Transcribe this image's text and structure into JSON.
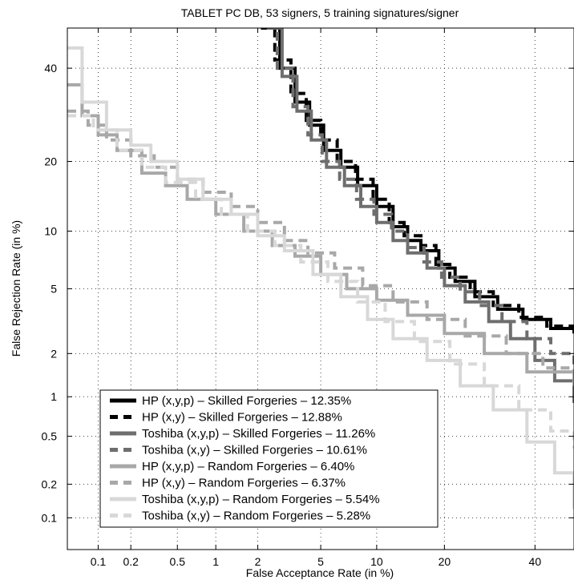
{
  "chart_data": {
    "type": "line",
    "title": "TABLET PC DB, 53 signers, 5 training signatures/signer",
    "xlabel": "False Acceptance Rate (in %)",
    "ylabel": "False Rejection Rate (in %)",
    "x_scale": "probit",
    "y_scale": "probit",
    "xlim": [
      0.05,
      50
    ],
    "ylim": [
      0.05,
      50
    ],
    "xticks": [
      "0.1",
      "0.2",
      "0.5",
      "1",
      "2",
      "5",
      "10",
      "20",
      "40"
    ],
    "yticks": [
      "0.1",
      "0.2",
      "0.5",
      "1",
      "2",
      "5",
      "10",
      "20",
      "40"
    ],
    "grid": true,
    "legend_position": "bottom-left",
    "series": [
      {
        "name": "HP (x,y,p) – Skilled Forgeries – 12.35%",
        "color": "#000000",
        "dash": "solid",
        "points": [
          [
            2.4,
            50
          ],
          [
            2.8,
            40
          ],
          [
            3.5,
            32
          ],
          [
            4.3,
            27
          ],
          [
            5.2,
            22
          ],
          [
            6.5,
            19
          ],
          [
            8,
            16
          ],
          [
            10,
            13
          ],
          [
            12,
            10.5
          ],
          [
            14,
            9
          ],
          [
            16,
            8
          ],
          [
            19,
            6.5
          ],
          [
            22,
            5.5
          ],
          [
            26,
            4.5
          ],
          [
            31,
            3.8
          ],
          [
            37,
            3.3
          ],
          [
            44,
            2.9
          ],
          [
            50,
            2.7
          ]
        ]
      },
      {
        "name": "HP (x,y) – Skilled Forgeries – 12.88%",
        "color": "#000000",
        "dash": "dashed",
        "points": [
          [
            2.1,
            50
          ],
          [
            2.6,
            42
          ],
          [
            3.3,
            34
          ],
          [
            4.1,
            28
          ],
          [
            5,
            24
          ],
          [
            6.2,
            20
          ],
          [
            7.8,
            17
          ],
          [
            9.6,
            14
          ],
          [
            11.5,
            11
          ],
          [
            13.5,
            9.5
          ],
          [
            16,
            8.5
          ],
          [
            18.5,
            6.8
          ],
          [
            21,
            5.8
          ],
          [
            25,
            4.8
          ],
          [
            30,
            4
          ],
          [
            36,
            3.4
          ],
          [
            43,
            3
          ],
          [
            50,
            2.8
          ]
        ]
      },
      {
        "name": "Toshiba (x,y,p) – Skilled Forgeries – 11.26%",
        "color": "#6e6e6e",
        "dash": "solid",
        "points": [
          [
            2.5,
            50
          ],
          [
            2.9,
            38
          ],
          [
            3.6,
            30
          ],
          [
            4.4,
            24
          ],
          [
            5.4,
            19
          ],
          [
            6.8,
            16
          ],
          [
            8.3,
            13
          ],
          [
            10,
            11
          ],
          [
            12,
            9
          ],
          [
            14,
            7.8
          ],
          [
            17,
            6.5
          ],
          [
            20,
            5.2
          ],
          [
            24,
            4.2
          ],
          [
            29,
            3.2
          ],
          [
            34,
            2.5
          ],
          [
            40,
            1.8
          ],
          [
            45,
            1.3
          ],
          [
            50,
            0.9
          ]
        ]
      },
      {
        "name": "Toshiba (x,y) – Skilled Forgeries – 10.61%",
        "color": "#6e6e6e",
        "dash": "dashed",
        "points": [
          [
            2.3,
            50
          ],
          [
            2.7,
            40
          ],
          [
            3.4,
            31
          ],
          [
            4.2,
            25
          ],
          [
            5.1,
            20
          ],
          [
            6.4,
            17
          ],
          [
            7.9,
            14
          ],
          [
            9.7,
            12
          ],
          [
            11.8,
            10
          ],
          [
            14,
            8.3
          ],
          [
            16.5,
            7
          ],
          [
            19.5,
            5.8
          ],
          [
            23,
            4.8
          ],
          [
            27,
            4
          ],
          [
            32,
            3.2
          ],
          [
            38,
            2.5
          ],
          [
            44,
            2
          ],
          [
            50,
            1.5
          ]
        ]
      },
      {
        "name": "HP (x,y,p) – Random Forgeries – 6.40%",
        "color": "#a8a8a8",
        "dash": "solid",
        "points": [
          [
            0.05,
            36
          ],
          [
            0.07,
            29
          ],
          [
            0.1,
            25
          ],
          [
            0.15,
            22
          ],
          [
            0.25,
            18
          ],
          [
            0.4,
            16
          ],
          [
            0.6,
            14
          ],
          [
            1,
            12
          ],
          [
            1.6,
            10
          ],
          [
            2.5,
            8.5
          ],
          [
            3.5,
            7.5
          ],
          [
            5,
            6
          ],
          [
            7,
            5
          ],
          [
            10,
            4.3
          ],
          [
            14,
            3.5
          ],
          [
            20,
            2.7
          ],
          [
            28,
            2
          ],
          [
            38,
            1.5
          ],
          [
            50,
            1.2
          ]
        ]
      },
      {
        "name": "HP (x,y) – Random Forgeries – 6.37%",
        "color": "#a8a8a8",
        "dash": "dashed",
        "points": [
          [
            0.05,
            30
          ],
          [
            0.08,
            27
          ],
          [
            0.12,
            24
          ],
          [
            0.2,
            21
          ],
          [
            0.32,
            19
          ],
          [
            0.5,
            17
          ],
          [
            0.8,
            15
          ],
          [
            1.3,
            13
          ],
          [
            2,
            11
          ],
          [
            3,
            9
          ],
          [
            4.2,
            7.8
          ],
          [
            6,
            6.5
          ],
          [
            8.5,
            5.2
          ],
          [
            12,
            4.2
          ],
          [
            17,
            3.3
          ],
          [
            24,
            2.6
          ],
          [
            33,
            2
          ],
          [
            42,
            1.6
          ],
          [
            50,
            1.3
          ]
        ]
      },
      {
        "name": "Toshiba (x,y,p) – Random Forgeries – 5.54%",
        "color": "#d8d8d8",
        "dash": "solid",
        "points": [
          [
            0.05,
            45
          ],
          [
            0.07,
            32
          ],
          [
            0.12,
            26
          ],
          [
            0.2,
            23
          ],
          [
            0.3,
            20
          ],
          [
            0.5,
            17
          ],
          [
            0.8,
            14
          ],
          [
            1.3,
            12
          ],
          [
            2,
            9.5
          ],
          [
            3,
            8
          ],
          [
            4.5,
            6
          ],
          [
            6.5,
            4.5
          ],
          [
            9,
            3.3
          ],
          [
            12,
            2.5
          ],
          [
            17,
            1.8
          ],
          [
            23,
            1.2
          ],
          [
            30,
            0.8
          ],
          [
            38,
            0.45
          ],
          [
            45,
            0.25
          ],
          [
            50,
            0.12
          ]
        ]
      },
      {
        "name": "Toshiba (x,y) – Random Forgeries – 5.28%",
        "color": "#d8d8d8",
        "dash": "dashed",
        "points": [
          [
            0.05,
            29
          ],
          [
            0.09,
            26
          ],
          [
            0.15,
            22
          ],
          [
            0.25,
            19
          ],
          [
            0.4,
            16.5
          ],
          [
            0.7,
            14
          ],
          [
            1.1,
            12
          ],
          [
            1.7,
            10
          ],
          [
            2.6,
            8.5
          ],
          [
            3.8,
            7
          ],
          [
            5.5,
            5.5
          ],
          [
            8,
            4.2
          ],
          [
            11,
            3.2
          ],
          [
            15,
            2.4
          ],
          [
            21,
            1.7
          ],
          [
            28,
            1.2
          ],
          [
            36,
            0.8
          ],
          [
            44,
            0.55
          ],
          [
            50,
            0.4
          ]
        ]
      }
    ]
  }
}
